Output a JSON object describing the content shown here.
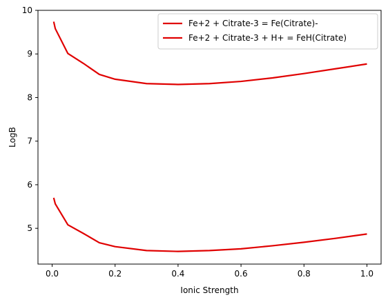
{
  "chart_data": {
    "type": "line",
    "title": "",
    "xlabel": "Ionic Strength",
    "ylabel": "LogB",
    "xlim": [
      -0.045,
      1.045
    ],
    "ylim": [
      4.18,
      10.0
    ],
    "xticks": [
      0.0,
      0.2,
      0.4,
      0.6,
      0.8,
      1.0
    ],
    "xtick_labels": [
      "0.0",
      "0.2",
      "0.4",
      "0.6",
      "0.8",
      "1.0"
    ],
    "yticks": [
      5,
      6,
      7,
      8,
      9,
      10
    ],
    "ytick_labels": [
      "5",
      "6",
      "7",
      "8",
      "9",
      "10"
    ],
    "grid": false,
    "legend_position": "upper-right",
    "series": [
      {
        "name": "Fe+2 + Citrate-3 = Fe(Citrate)-",
        "color": "#e00000",
        "x": [
          0.005,
          0.01,
          0.05,
          0.1,
          0.15,
          0.2,
          0.3,
          0.4,
          0.5,
          0.6,
          0.7,
          0.8,
          0.9,
          1.0
        ],
        "y": [
          5.7,
          5.56,
          5.08,
          4.88,
          4.67,
          4.58,
          4.49,
          4.47,
          4.49,
          4.53,
          4.6,
          4.68,
          4.77,
          4.87
        ]
      },
      {
        "name": "Fe+2 + Citrate-3 + H+ = FeH(Citrate)",
        "color": "#e00000",
        "x": [
          0.005,
          0.01,
          0.05,
          0.1,
          0.15,
          0.2,
          0.3,
          0.4,
          0.5,
          0.6,
          0.7,
          0.8,
          0.9,
          1.0
        ],
        "y": [
          9.74,
          9.58,
          9.01,
          8.78,
          8.53,
          8.42,
          8.32,
          8.3,
          8.32,
          8.37,
          8.45,
          8.55,
          8.66,
          8.77
        ]
      }
    ]
  }
}
